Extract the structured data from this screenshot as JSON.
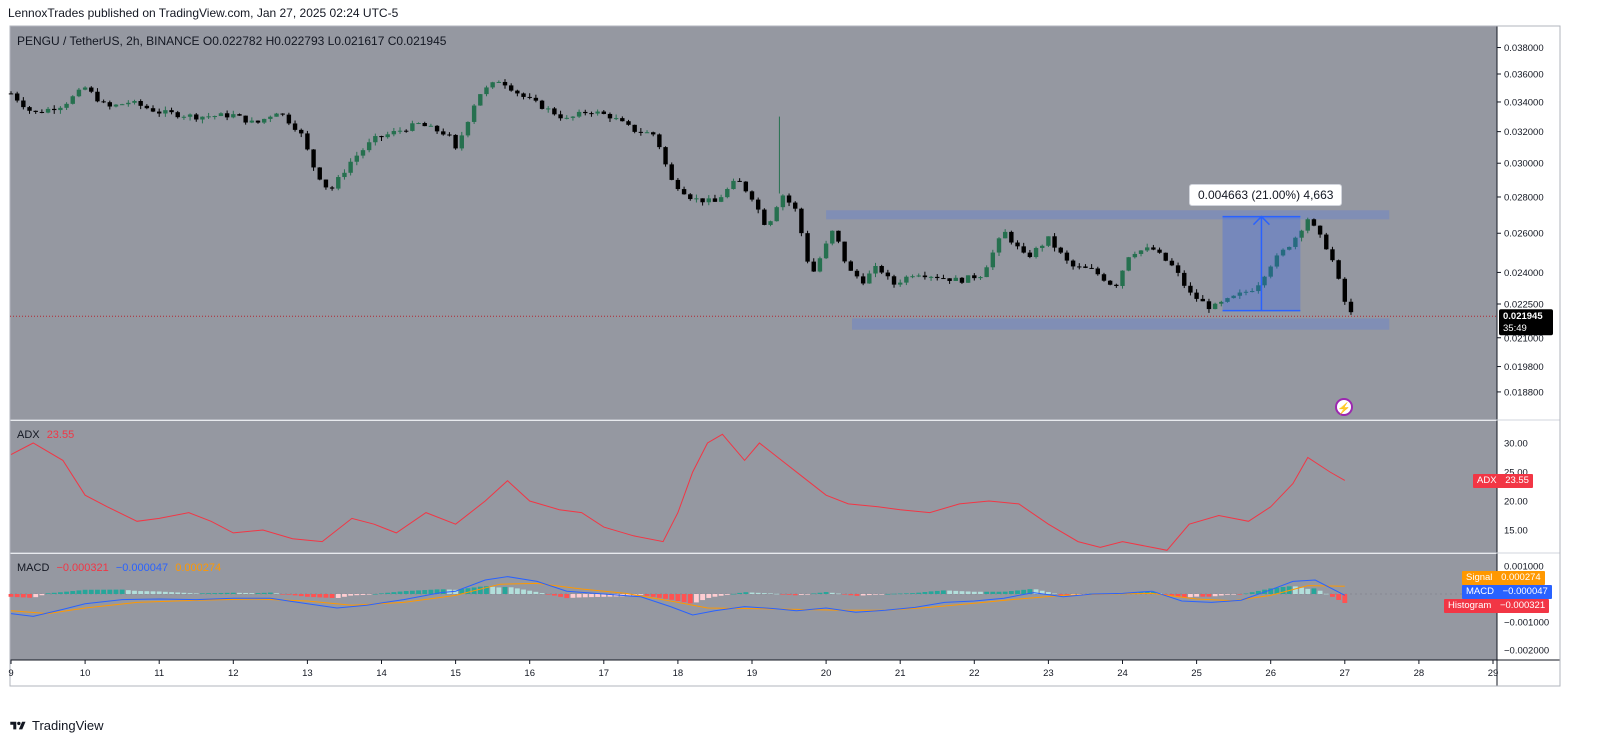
{
  "header": {
    "published_by": "LennoxTrades published on TradingView.com, Jan 27, 2025 02:24 UTC-5"
  },
  "symbol_line": {
    "title": "PENGU / TetherUS, 2h, BINANCE",
    "open": "O0.022782",
    "high": "H0.022793",
    "low": "L0.021617",
    "close": "C0.021945"
  },
  "colors": {
    "panel_bg": "#9598a1",
    "up": "#26704f",
    "down": "#000000",
    "adx_line": "#f23645",
    "macd_line": "#2962ff",
    "signal_line": "#ff9800",
    "range_box": "#6f86c6",
    "measure_arrow": "#2962ff"
  },
  "price_axis": {
    "ticks": [
      "0.038000",
      "0.036000",
      "0.034000",
      "0.032000",
      "0.030000",
      "0.028000",
      "0.026000",
      "0.024000",
      "0.022500",
      "0.021000",
      "0.019800",
      "0.018800"
    ],
    "last_price": "0.021945",
    "countdown": "35:49"
  },
  "measure": {
    "label": "0.004663 (21.00%) 4,663"
  },
  "time_axis": {
    "ticks": [
      "9",
      "10",
      "11",
      "12",
      "13",
      "14",
      "15",
      "16",
      "17",
      "18",
      "19",
      "20",
      "21",
      "22",
      "23",
      "24",
      "25",
      "26",
      "27",
      "28",
      "29"
    ]
  },
  "adx": {
    "label": "ADX",
    "value": "23.55",
    "ticks": [
      "30.00",
      "25.00",
      "20.00",
      "15.00"
    ],
    "tag_name": "ADX",
    "tag_value": "23.55"
  },
  "macd": {
    "label": "MACD",
    "histogram_value": "−0.000321",
    "macd_value": "−0.000047",
    "signal_value": "0.000274",
    "ticks": [
      "0.001000",
      "0.000000",
      "−0.001000",
      "−0.002000"
    ],
    "tag_signal_name": "Signal",
    "tag_signal_value": "0.000274",
    "tag_macd_name": "MACD",
    "tag_macd_value": "−0.000047",
    "tag_hist_name": "Histogram",
    "tag_hist_value": "−0.000321"
  },
  "footer": {
    "brand": "TradingView",
    "logo": "tradingview-logo-icon"
  },
  "chart_data": {
    "type": "candlestick",
    "title": "PENGU / TetherUS, 2h, BINANCE",
    "x_range_days": [
      9,
      29
    ],
    "y_scale": "log",
    "ylim": [
      0.0178,
      0.0388
    ],
    "close_path": [
      [
        9.0,
        0.0346
      ],
      [
        9.3,
        0.0332
      ],
      [
        9.7,
        0.0338
      ],
      [
        10.0,
        0.035
      ],
      [
        10.3,
        0.0336
      ],
      [
        10.6,
        0.034
      ],
      [
        11.0,
        0.0333
      ],
      [
        11.5,
        0.033
      ],
      [
        12.0,
        0.0331
      ],
      [
        12.3,
        0.0325
      ],
      [
        12.6,
        0.0334
      ],
      [
        12.9,
        0.032
      ],
      [
        13.1,
        0.0296
      ],
      [
        13.3,
        0.0283
      ],
      [
        13.6,
        0.0302
      ],
      [
        13.9,
        0.0315
      ],
      [
        14.2,
        0.032
      ],
      [
        14.5,
        0.0325
      ],
      [
        14.9,
        0.0318
      ],
      [
        15.0,
        0.0308
      ],
      [
        15.3,
        0.0345
      ],
      [
        15.6,
        0.0356
      ],
      [
        15.9,
        0.0344
      ],
      [
        16.2,
        0.0336
      ],
      [
        16.5,
        0.0328
      ],
      [
        16.8,
        0.0334
      ],
      [
        17.1,
        0.033
      ],
      [
        17.4,
        0.0321
      ],
      [
        17.7,
        0.0318
      ],
      [
        17.9,
        0.029
      ],
      [
        18.2,
        0.0279
      ],
      [
        18.5,
        0.0277
      ],
      [
        18.8,
        0.029
      ],
      [
        19.0,
        0.028
      ],
      [
        19.2,
        0.0263
      ],
      [
        19.4,
        0.0282
      ],
      [
        19.6,
        0.0272
      ],
      [
        19.8,
        0.0238
      ],
      [
        20.1,
        0.0262
      ],
      [
        20.3,
        0.0241
      ],
      [
        20.5,
        0.0236
      ],
      [
        20.7,
        0.0243
      ],
      [
        20.9,
        0.0234
      ],
      [
        21.2,
        0.024
      ],
      [
        21.5,
        0.0238
      ],
      [
        21.8,
        0.0236
      ],
      [
        22.1,
        0.0239
      ],
      [
        22.4,
        0.0261
      ],
      [
        22.7,
        0.0247
      ],
      [
        23.0,
        0.0257
      ],
      [
        23.3,
        0.0243
      ],
      [
        23.6,
        0.0241
      ],
      [
        23.9,
        0.0233
      ],
      [
        24.1,
        0.025
      ],
      [
        24.4,
        0.0252
      ],
      [
        24.7,
        0.0242
      ],
      [
        24.9,
        0.023
      ],
      [
        25.2,
        0.0223
      ],
      [
        25.5,
        0.0228
      ],
      [
        25.8,
        0.0233
      ],
      [
        26.0,
        0.0244
      ],
      [
        26.3,
        0.0256
      ],
      [
        26.5,
        0.0268
      ],
      [
        26.8,
        0.025
      ],
      [
        27.0,
        0.0226
      ],
      [
        27.1,
        0.02195
      ]
    ],
    "range_box": {
      "x": [
        20.0,
        27.6
      ],
      "upper": [
        0.02675,
        0.02725
      ],
      "lower": [
        0.02135,
        0.02185
      ]
    },
    "measure": {
      "x": [
        25.35,
        26.4
      ],
      "from": 0.0222,
      "to": 0.0269,
      "change": 0.004663,
      "percent": 21.0,
      "ticks": 4663
    },
    "adx_series": [
      [
        9.0,
        28.0
      ],
      [
        9.3,
        30.0
      ],
      [
        9.7,
        27.0
      ],
      [
        10.0,
        21.0
      ],
      [
        10.3,
        19.0
      ],
      [
        10.7,
        16.5
      ],
      [
        11.0,
        17.0
      ],
      [
        11.4,
        18.0
      ],
      [
        11.7,
        16.5
      ],
      [
        12.0,
        14.5
      ],
      [
        12.4,
        15.0
      ],
      [
        12.8,
        13.5
      ],
      [
        13.2,
        13.0
      ],
      [
        13.6,
        17.0
      ],
      [
        13.9,
        16.0
      ],
      [
        14.2,
        14.5
      ],
      [
        14.6,
        18.0
      ],
      [
        15.0,
        16.0
      ],
      [
        15.4,
        20.0
      ],
      [
        15.7,
        23.5
      ],
      [
        16.0,
        20.0
      ],
      [
        16.4,
        18.5
      ],
      [
        16.7,
        18.0
      ],
      [
        17.0,
        15.5
      ],
      [
        17.4,
        14.0
      ],
      [
        17.8,
        13.0
      ],
      [
        18.0,
        18.0
      ],
      [
        18.2,
        25.0
      ],
      [
        18.4,
        30.0
      ],
      [
        18.6,
        31.5
      ],
      [
        18.9,
        27.0
      ],
      [
        19.1,
        30.0
      ],
      [
        19.4,
        27.0
      ],
      [
        19.7,
        24.0
      ],
      [
        20.0,
        21.0
      ],
      [
        20.3,
        19.5
      ],
      [
        20.7,
        19.0
      ],
      [
        21.0,
        18.5
      ],
      [
        21.4,
        18.0
      ],
      [
        21.8,
        19.5
      ],
      [
        22.2,
        20.0
      ],
      [
        22.6,
        19.5
      ],
      [
        23.0,
        16.0
      ],
      [
        23.4,
        13.0
      ],
      [
        23.7,
        12.0
      ],
      [
        24.0,
        13.0
      ],
      [
        24.4,
        12.0
      ],
      [
        24.6,
        11.5
      ],
      [
        24.9,
        16.0
      ],
      [
        25.3,
        17.5
      ],
      [
        25.7,
        16.5
      ],
      [
        26.0,
        19.0
      ],
      [
        26.3,
        23.0
      ],
      [
        26.5,
        27.5
      ],
      [
        26.8,
        25.0
      ],
      [
        27.0,
        23.55
      ]
    ],
    "macd_series": [
      [
        9.0,
        -0.0007
      ],
      [
        9.3,
        -0.0008
      ],
      [
        9.7,
        -0.00055
      ],
      [
        10.0,
        -0.00035
      ],
      [
        10.5,
        -0.0002
      ],
      [
        11.0,
        -0.00018
      ],
      [
        11.5,
        -0.0002
      ],
      [
        12.0,
        -0.00015
      ],
      [
        12.5,
        -0.00015
      ],
      [
        13.0,
        -0.00035
      ],
      [
        13.4,
        -0.0005
      ],
      [
        13.8,
        -0.0004
      ],
      [
        14.3,
        -0.0002
      ],
      [
        14.8,
        5e-05
      ],
      [
        15.0,
        0.0001
      ],
      [
        15.4,
        0.0005
      ],
      [
        15.7,
        0.00062
      ],
      [
        16.1,
        0.00045
      ],
      [
        16.5,
        0.0001
      ],
      [
        17.0,
        0.0
      ],
      [
        17.5,
        -0.0001
      ],
      [
        17.9,
        -0.00045
      ],
      [
        18.2,
        -0.00075
      ],
      [
        18.5,
        -0.0006
      ],
      [
        18.9,
        -0.00045
      ],
      [
        19.3,
        -0.00052
      ],
      [
        19.6,
        -0.0006
      ],
      [
        20.0,
        -0.0005
      ],
      [
        20.4,
        -0.00065
      ],
      [
        20.8,
        -0.00058
      ],
      [
        21.2,
        -0.00048
      ],
      [
        21.6,
        -0.0003
      ],
      [
        22.0,
        -0.00025
      ],
      [
        22.4,
        -0.00015
      ],
      [
        22.8,
        5e-05
      ],
      [
        23.2,
        -0.0001
      ],
      [
        23.6,
        0.0
      ],
      [
        24.0,
        2e-05
      ],
      [
        24.4,
        0.0001
      ],
      [
        24.8,
        -0.00025
      ],
      [
        25.2,
        -0.0003
      ],
      [
        25.6,
        -0.00022
      ],
      [
        26.0,
        0.00015
      ],
      [
        26.3,
        0.00045
      ],
      [
        26.6,
        0.0005
      ],
      [
        27.0,
        -4.7e-05
      ]
    ],
    "signal_series": [
      [
        9.0,
        -0.0006
      ],
      [
        9.5,
        -0.0007
      ],
      [
        10.0,
        -0.0005
      ],
      [
        10.7,
        -0.0003
      ],
      [
        11.5,
        -0.00022
      ],
      [
        12.3,
        -0.00018
      ],
      [
        13.0,
        -0.00025
      ],
      [
        13.6,
        -0.0004
      ],
      [
        14.3,
        -0.0003
      ],
      [
        15.0,
        -5e-05
      ],
      [
        15.6,
        0.00035
      ],
      [
        16.1,
        0.00038
      ],
      [
        16.7,
        0.00018
      ],
      [
        17.3,
        2e-05
      ],
      [
        17.9,
        -0.00025
      ],
      [
        18.4,
        -0.0005
      ],
      [
        19.0,
        -0.00052
      ],
      [
        19.6,
        -0.00055
      ],
      [
        20.2,
        -0.00058
      ],
      [
        20.8,
        -0.00058
      ],
      [
        21.4,
        -0.00048
      ],
      [
        22.0,
        -0.00033
      ],
      [
        22.6,
        -0.00018
      ],
      [
        23.2,
        -5e-05
      ],
      [
        23.8,
        0.0
      ],
      [
        24.4,
        2e-05
      ],
      [
        25.0,
        -0.00018
      ],
      [
        25.5,
        -0.00024
      ],
      [
        26.0,
        -5e-05
      ],
      [
        26.5,
        0.0003
      ],
      [
        27.0,
        0.000274
      ]
    ]
  }
}
